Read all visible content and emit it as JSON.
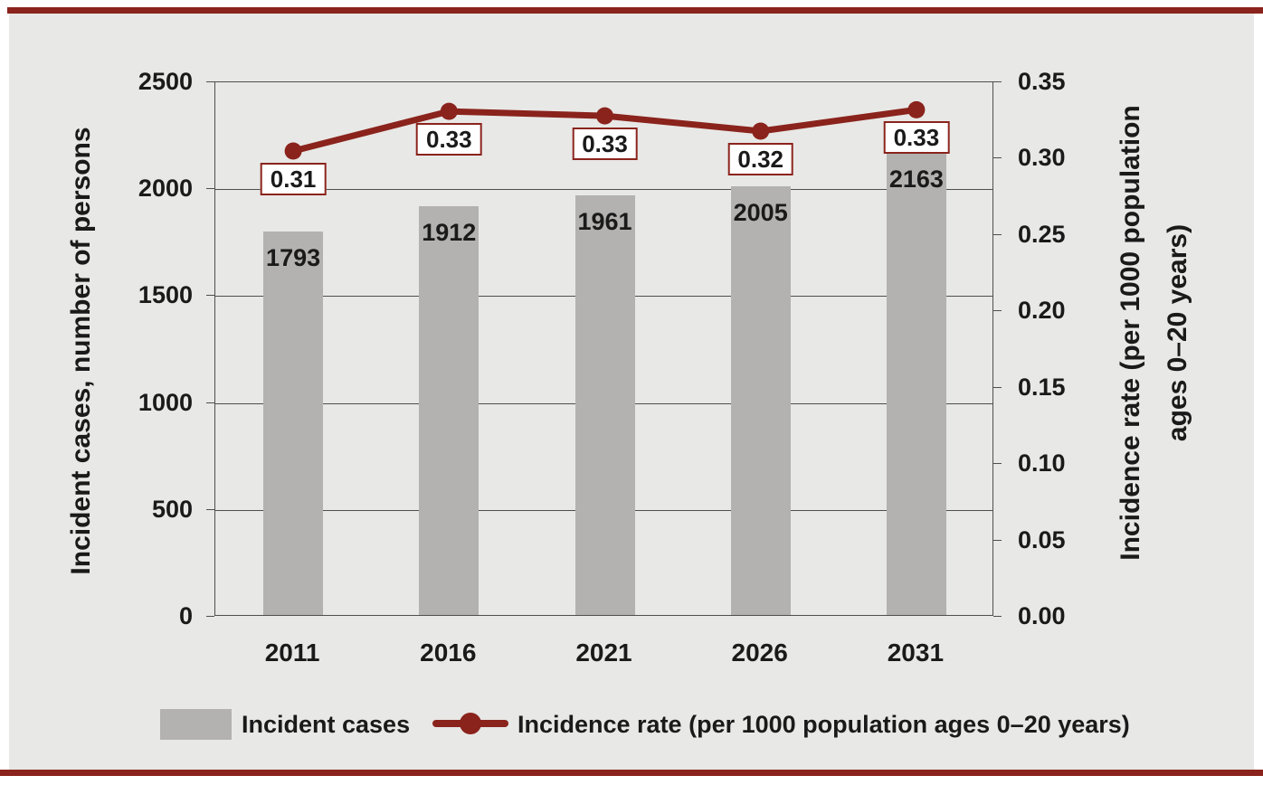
{
  "figure": {
    "rule_color": "#8a231c",
    "panel_color": "#e8e8e6",
    "axis_line_color": "#4f4f4f",
    "text_color": "#1a1a1a"
  },
  "chart_data": {
    "type": "bar+line combo, dual axis",
    "categories": [
      "2011",
      "2016",
      "2021",
      "2026",
      "2031"
    ],
    "series": [
      {
        "name": "Incident cases",
        "type": "bar",
        "axis": "left",
        "color": "#b3b2b0",
        "values": [
          1793,
          1912,
          1961,
          2005,
          2163
        ]
      },
      {
        "name": "Incidence rate (per 1000 population ages 0–20 years)",
        "type": "line",
        "axis": "right",
        "color": "#8a231c",
        "values": [
          0.31,
          0.33,
          0.33,
          0.32,
          0.33
        ],
        "value_labels": [
          "0.31",
          "0.33",
          "0.33",
          "0.32",
          "0.33"
        ],
        "plot_values": [
          0.305,
          0.331,
          0.328,
          0.318,
          0.332
        ]
      }
    ],
    "left_axis": {
      "title": "Incident cases, number of persons",
      "min": 0,
      "max": 2500,
      "tick_step": 500,
      "ticks": [
        "2500",
        "2000",
        "1500",
        "1000",
        "500",
        "0"
      ]
    },
    "right_axis": {
      "title_line1": "Incidence rate (per 1000 population",
      "title_line2": "ages 0–20 years)",
      "min": 0,
      "max": 0.35,
      "tick_step": 0.05,
      "ticks": [
        "0.35",
        "0.30",
        "0.25",
        "0.20",
        "0.15",
        "0.10",
        "0.05",
        "0.00"
      ]
    },
    "grid": "horizontal gridlines at left-axis ticks only",
    "legend": {
      "position": "bottom",
      "items": [
        {
          "label": "Incident cases",
          "swatch": "bar"
        },
        {
          "label": "Incidence rate (per 1000 population ages 0–20 years)",
          "swatch": "line-marker"
        }
      ]
    }
  }
}
